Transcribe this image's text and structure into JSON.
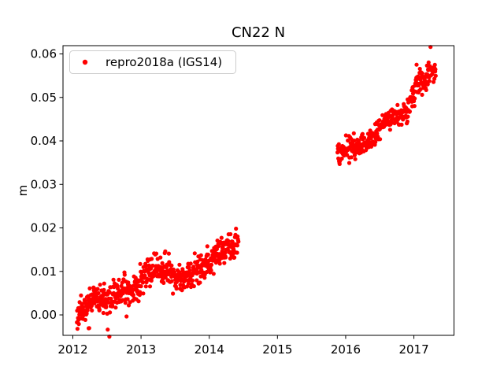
{
  "figure": {
    "background": "#ffffff",
    "text_color": "#000000",
    "spine_color": "#000000"
  },
  "chart_data": {
    "type": "scatter",
    "title": "CN22 N",
    "xlabel": "",
    "ylabel": "m",
    "grid": false,
    "xlim": [
      2011.856,
      2017.588
    ],
    "ylim": [
      -0.0047,
      0.0619
    ],
    "xticks": [
      2012,
      2013,
      2014,
      2015,
      2016,
      2017
    ],
    "xtick_labels": [
      "2012",
      "2013",
      "2014",
      "2015",
      "2016",
      "2017"
    ],
    "yticks": [
      0,
      0.01,
      0.02,
      0.03,
      0.04,
      0.05,
      0.06
    ],
    "ytick_labels": [
      "0.00",
      "0.01",
      "0.02",
      "0.03",
      "0.04",
      "0.05",
      "0.06"
    ],
    "legend": {
      "position": "upper left",
      "entries": [
        {
          "label": "repro2018a (IGS14)",
          "color": "#ff0000",
          "marker": "dot"
        }
      ]
    },
    "series": [
      {
        "name": "repro2018a (IGS14)",
        "color": "#ff0000",
        "marker_style": "point",
        "marker_radius": 2.6,
        "seed": 11,
        "sample_step_years": 0.004,
        "segments": [
          {
            "x_range": [
              2012.06,
              2014.43
            ],
            "noise_sigma": 0.0015,
            "trend": [
              [
                2012.06,
                0.0
              ],
              [
                2012.32,
                0.0038
              ],
              [
                2012.5,
                0.003
              ],
              [
                2012.84,
                0.0062
              ],
              [
                2012.98,
                0.0058
              ],
              [
                2013.04,
                0.0102
              ],
              [
                2013.36,
                0.0105
              ],
              [
                2013.6,
                0.0078
              ],
              [
                2013.9,
                0.0108
              ],
              [
                2014.1,
                0.014
              ],
              [
                2014.43,
                0.0168
              ]
            ]
          },
          {
            "x_range": [
              2015.88,
              2017.32
            ],
            "noise_sigma": 0.0013,
            "trend": [
              [
                2015.88,
                0.0362
              ],
              [
                2016.0,
                0.0388
              ],
              [
                2016.17,
                0.0385
              ],
              [
                2016.3,
                0.0398
              ],
              [
                2016.55,
                0.044
              ],
              [
                2016.7,
                0.0462
              ],
              [
                2016.82,
                0.0452
              ],
              [
                2017.0,
                0.0508
              ],
              [
                2017.09,
                0.0542
              ],
              [
                2017.16,
                0.0535
              ],
              [
                2017.26,
                0.0565
              ],
              [
                2017.32,
                0.056
              ]
            ]
          }
        ]
      }
    ]
  }
}
